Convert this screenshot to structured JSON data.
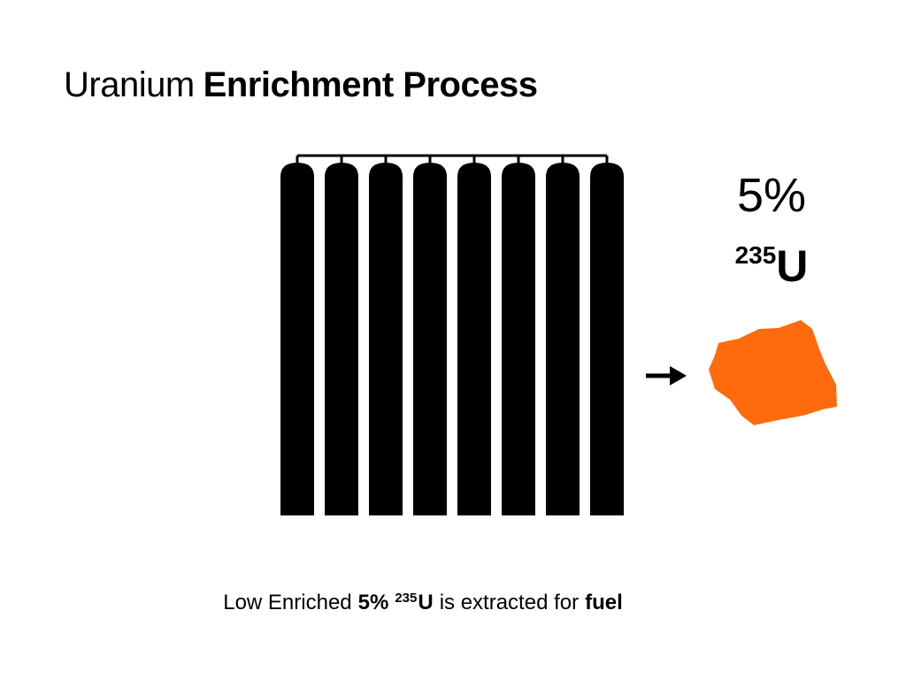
{
  "title": {
    "regular": "Uranium",
    "bold": "Enrichment Process"
  },
  "product_label": {
    "percent": "5%",
    "isotope_mass": "235",
    "isotope_symbol": "U"
  },
  "caption": {
    "lead": "Low Enriched",
    "percent": "5%",
    "isotope_mass": "235",
    "isotope_symbol": "U",
    "middle": "is extracted for",
    "end": "fuel"
  }
}
